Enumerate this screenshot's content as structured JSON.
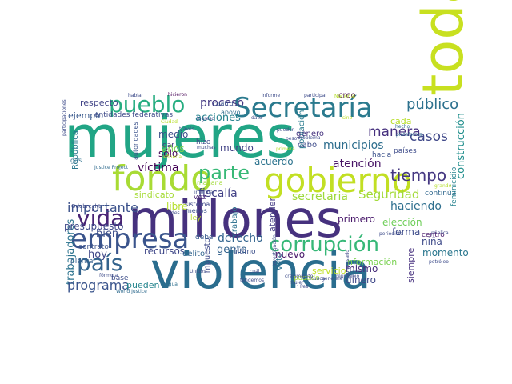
{
  "words": [
    {
      "text": "mujeres",
      "color": "#21a585"
    },
    {
      "text": "millones",
      "color": "#46317e"
    },
    {
      "text": "violencia",
      "color": "#2a6d8e"
    },
    {
      "text": "toda",
      "color": "#c8e020"
    },
    {
      "text": "gobierno",
      "color": "#c2df23"
    },
    {
      "text": "fondo",
      "color": "#a8db34"
    },
    {
      "text": "Secretaría",
      "color": "#2a7a8e"
    },
    {
      "text": "empresa",
      "color": "#3a548c"
    },
    {
      "text": "corrupción",
      "color": "#37b878"
    },
    {
      "text": "pueblo",
      "color": "#26ad81"
    },
    {
      "text": "parte",
      "color": "#38b977"
    },
    {
      "text": "vida",
      "color": "#482374"
    },
    {
      "text": "país",
      "color": "#33638d"
    },
    {
      "text": "público",
      "color": "#2d718e"
    },
    {
      "text": "casos",
      "color": "#3f4889"
    },
    {
      "text": "manera",
      "color": "#46307e"
    },
    {
      "text": "municipios",
      "color": "#2e6e8e"
    },
    {
      "text": "atención",
      "color": "#471365"
    },
    {
      "text": "derecho",
      "color": "#32648e"
    },
    {
      "text": "tiempo",
      "color": "#453882"
    },
    {
      "text": "construcción",
      "color": "#218f8d"
    },
    {
      "text": "Seguridad",
      "color": "#a2da37"
    },
    {
      "text": "secretaria",
      "color": "#9dd93b"
    },
    {
      "text": "importante",
      "color": "#3b518b"
    },
    {
      "text": "trabajadores",
      "color": "#2c738e"
    },
    {
      "text": "programa",
      "color": "#3a548c"
    },
    {
      "text": "víctima",
      "color": "#440256"
    },
    {
      "text": "fiscalía",
      "color": "#424186"
    },
    {
      "text": "proceso",
      "color": "#443983"
    },
    {
      "text": "haciendo",
      "color": "#2e6f8e"
    },
    {
      "text": "elección",
      "color": "#6ece58"
    },
    {
      "text": "acciones",
      "color": "#26828e"
    },
    {
      "text": "respecto",
      "color": "#414487"
    },
    {
      "text": "ejemplo",
      "color": "#38588c"
    },
    {
      "text": "entidades federativas",
      "color": "#3e4a89"
    },
    {
      "text": "República",
      "color": "#2a778e"
    },
    {
      "text": "medio",
      "color": "#3c4f8a"
    },
    {
      "text": "años",
      "color": "#7fd34e"
    },
    {
      "text": "sólo",
      "color": "#450559"
    },
    {
      "text": "bien",
      "color": "#3d4e8a"
    },
    {
      "text": "presupuesto",
      "color": "#3e4989"
    },
    {
      "text": "hoy",
      "color": "#3f4788"
    },
    {
      "text": "mundo",
      "color": "#424186"
    },
    {
      "text": "acuerdo",
      "color": "#2c738e"
    },
    {
      "text": "nuevo",
      "color": "#48186a"
    },
    {
      "text": "gente",
      "color": "#33628d"
    },
    {
      "text": "sindicato",
      "color": "#a5db36"
    },
    {
      "text": "libre",
      "color": "#b5de2b"
    },
    {
      "text": "primero",
      "color": "#48186a"
    },
    {
      "text": "forma",
      "color": "#3e4c8a"
    },
    {
      "text": "mismo",
      "color": "#472c7a"
    },
    {
      "text": "dinero",
      "color": "#3f4889"
    },
    {
      "text": "siempre",
      "color": "#46307e"
    },
    {
      "text": "momento",
      "color": "#2a778e"
    },
    {
      "text": "niña",
      "color": "#3e4a89"
    },
    {
      "text": "cada",
      "color": "#b8de29"
    },
    {
      "text": "recursos",
      "color": "#3f4788"
    },
    {
      "text": "impuesto",
      "color": "#3e4a89"
    },
    {
      "text": "trabajo",
      "color": "#2c718e"
    },
    {
      "text": "atender",
      "color": "#443b84"
    },
    {
      "text": "pueden",
      "color": "#25858e"
    },
    {
      "text": "debe",
      "color": "#38598c"
    },
    {
      "text": "contrato",
      "color": "#3b528b"
    },
    {
      "text": "base",
      "color": "#3d4d8a"
    },
    {
      "text": "ley",
      "color": "#b5de2b"
    },
    {
      "text": "vez",
      "color": "#482475"
    },
    {
      "text": "delito",
      "color": "#32658e"
    },
    {
      "text": "planta",
      "color": "#355f8d"
    },
    {
      "text": "sistema",
      "color": "#3f4889"
    },
    {
      "text": "menos",
      "color": "#3b518b"
    },
    {
      "text": "hacia",
      "color": "#3b518b"
    },
    {
      "text": "población",
      "color": "#297b8e"
    },
    {
      "text": "cabo",
      "color": "#3e4c8a"
    },
    {
      "text": "género",
      "color": "#46337f"
    },
    {
      "text": "continúa",
      "color": "#31688e"
    },
    {
      "text": "feminicidio",
      "color": "#26828e"
    },
    {
      "text": "centro",
      "color": "#48186a"
    },
    {
      "text": "servicio",
      "color": "#c0df25"
    },
    {
      "text": "información",
      "color": "#7ad151"
    },
    {
      "text": "voto",
      "color": "#2d718e"
    },
    {
      "text": "último",
      "color": "#3c4f8a"
    },
    {
      "text": "pasado",
      "color": "#a5db36"
    },
    {
      "text": "Odebrecht",
      "color": "#3e4a89"
    },
    {
      "text": "gas",
      "color": "#2d718e"
    },
    {
      "text": "agua",
      "color": "#2d708e"
    },
    {
      "text": "World Justice",
      "color": "#2f6b8e"
    },
    {
      "text": "Justice Project",
      "color": "#2f6b8e"
    },
    {
      "text": "hizo",
      "color": "#3e4c8a"
    },
    {
      "text": "dar",
      "color": "#46337f"
    },
    {
      "text": "mañana",
      "color": "#a2da37"
    },
    {
      "text": "apoyo",
      "color": "#2e6e8e"
    },
    {
      "text": "cuatro",
      "color": "#3b528b"
    },
    {
      "text": "creo",
      "color": "#440154"
    },
    {
      "text": "hecho",
      "color": "#31688e"
    },
    {
      "text": "países",
      "color": "#3e4c8a"
    },
    {
      "text": "plataforma",
      "color": "#31688e"
    },
    {
      "text": "petróleo",
      "color": "#3e4c8a"
    },
    {
      "text": "periodista",
      "color": "#3e4c8a"
    },
    {
      "text": "pública",
      "color": "#3e4c8a"
    },
    {
      "text": "grande",
      "color": "#b5de2b"
    },
    {
      "text": "ingreso",
      "color": "#3e4c8a"
    },
    {
      "text": "Ciudad",
      "color": "#b8de29"
    },
    {
      "text": "autoridades",
      "color": "#3b528b"
    },
    {
      "text": "fórmula",
      "color": "#3e4c8a"
    },
    {
      "text": "redes",
      "color": "#3e4c8a"
    },
    {
      "text": "informar",
      "color": "#3e4c8a"
    },
    {
      "text": "participaciones",
      "color": "#3e4c8a"
    },
    {
      "text": "habiar",
      "color": "#3e4c8a"
    },
    {
      "text": "hicieron",
      "color": "#440154"
    },
    {
      "text": "participar",
      "color": "#3e4c8a"
    },
    {
      "text": "Nacional",
      "color": "#b5de2b"
    },
    {
      "text": "informe",
      "color": "#3e4c8a"
    },
    {
      "text": "dato",
      "color": "#3e4c8a"
    },
    {
      "text": "sino",
      "color": "#b8de29"
    },
    {
      "text": "pueden",
      "color": "#3e4c8a"
    },
    {
      "text": "peso",
      "color": "#3e4c8a"
    },
    {
      "text": "primera",
      "color": "#b5de2b"
    },
    {
      "text": "través",
      "color": "#3e4c8a"
    },
    {
      "text": "refinería",
      "color": "#b8de29"
    },
    {
      "text": "crecimiento",
      "color": "#3e4c8a"
    },
    {
      "text": "nunca",
      "color": "#3e4c8a"
    },
    {
      "text": "generale",
      "color": "#3e4c8a"
    },
    {
      "text": "cuál",
      "color": "#3e4c8a"
    },
    {
      "text": "investigación",
      "color": "#3e4c8a"
    },
    {
      "text": "Pes",
      "color": "#3e4c8a"
    },
    {
      "text": "Unidos",
      "color": "#3e4c8a"
    },
    {
      "text": "tendemos",
      "color": "#3e4c8a"
    },
    {
      "text": "problema",
      "color": "#3e4c8a"
    },
    {
      "text": "empresario",
      "color": "#3e4c8a"
    },
    {
      "text": "municipio",
      "color": "#3e4c8a"
    },
    {
      "text": "mujer",
      "color": "#3e4c8a"
    },
    {
      "text": "muchas",
      "color": "#3e4c8a"
    }
  ]
}
